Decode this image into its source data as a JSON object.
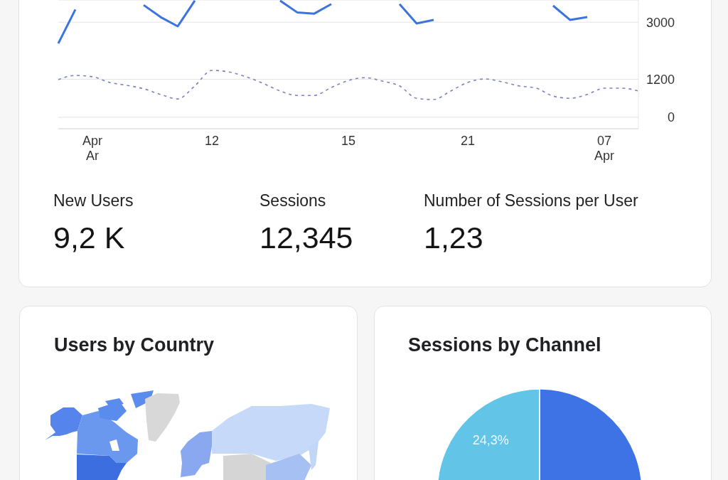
{
  "chart_data": [
    {
      "type": "line",
      "categories": [
        null,
        null,
        "Apr\nAr",
        null,
        null,
        null,
        null,
        null,
        null,
        "12",
        null,
        null,
        null,
        null,
        null,
        null,
        null,
        "15",
        null,
        null,
        null,
        null,
        null,
        null,
        "21",
        null,
        null,
        null,
        null,
        null,
        null,
        null,
        "07\nApr",
        null,
        null
      ],
      "series": [
        {
          "color": "#3b74dc",
          "line_style": "solid",
          "values": [
            2330,
            3400,
            null,
            null,
            null,
            3540,
            3160,
            2870,
            3680,
            null,
            null,
            null,
            null,
            3680,
            3310,
            3270,
            3570,
            null,
            null,
            null,
            3570,
            2960,
            3070,
            null,
            null,
            null,
            null,
            null,
            null,
            3520,
            3070,
            3160,
            null,
            null,
            null
          ]
        },
        {
          "color": "#7c82bf",
          "line_style": "dashed",
          "values": [
            1190,
            1320,
            1280,
            1100,
            1010,
            900,
            720,
            580,
            990,
            1480,
            1430,
            1280,
            1070,
            830,
            690,
            690,
            940,
            1160,
            1250,
            1140,
            990,
            600,
            560,
            830,
            1100,
            1210,
            1120,
            990,
            920,
            670,
            600,
            720,
            920,
            920,
            830
          ]
        }
      ],
      "ylim": [
        -360,
        3700
      ],
      "yticks": [
        0,
        1200,
        3000
      ],
      "grid": "y",
      "marker": "none"
    },
    {
      "type": "other",
      "annotations": [
        "New Users",
        "9,2 K",
        "Sessions",
        "12,345",
        "Number of Sessions per User",
        "1,23"
      ]
    },
    {
      "type": "other",
      "title": "Users by Country"
    },
    {
      "type": "pie",
      "title": "Sessions by Channel",
      "categories": [
        null,
        null
      ],
      "values": [
        75.7,
        24.3
      ],
      "colors": [
        "#3e73e6",
        "#62c4e6"
      ],
      "value_labels": [
        null,
        "24,3%"
      ]
    }
  ]
}
